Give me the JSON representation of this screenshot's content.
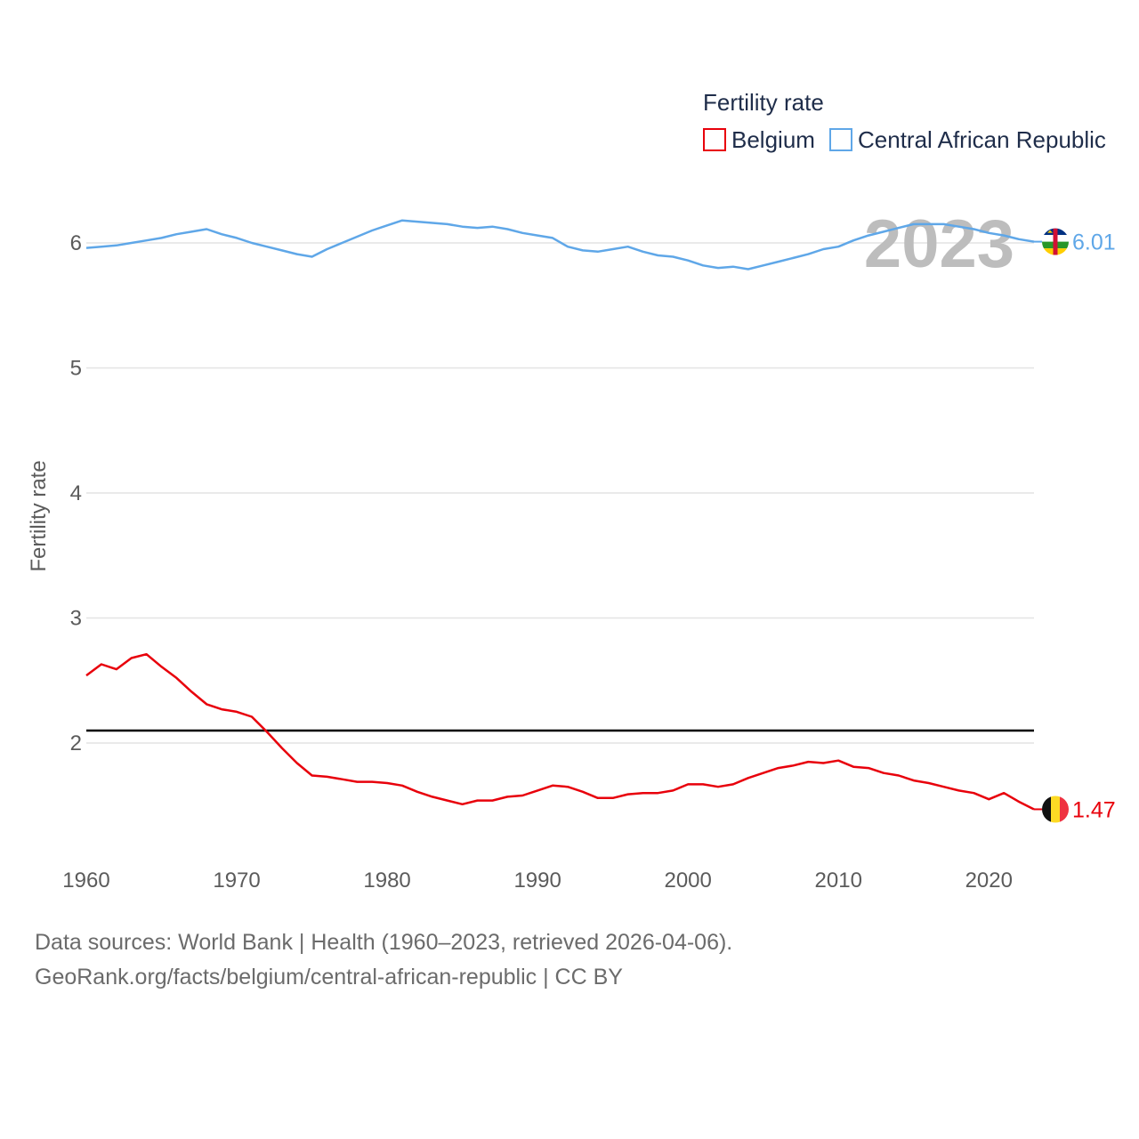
{
  "chart_data": {
    "type": "line",
    "title": "Fertility rate",
    "ylabel": "Fertility rate",
    "xlabel": "",
    "xlim": [
      1960,
      2023
    ],
    "ylim": [
      1.3,
      6.3
    ],
    "yticks": [
      2,
      3,
      4,
      5,
      6
    ],
    "xticks": [
      1960,
      1970,
      1980,
      1990,
      2000,
      2010,
      2020
    ],
    "year_label": "2023",
    "reference_line": 2.1,
    "legend_position": "top-right",
    "series": [
      {
        "name": "Belgium",
        "color": "#e8000b",
        "end_label": "1.47",
        "flag": "belgium-flag",
        "x": [
          1960,
          1961,
          1962,
          1963,
          1964,
          1965,
          1966,
          1967,
          1968,
          1969,
          1970,
          1971,
          1972,
          1973,
          1974,
          1975,
          1976,
          1977,
          1978,
          1979,
          1980,
          1981,
          1982,
          1983,
          1984,
          1985,
          1986,
          1987,
          1988,
          1989,
          1990,
          1991,
          1992,
          1993,
          1994,
          1995,
          1996,
          1997,
          1998,
          1999,
          2000,
          2001,
          2002,
          2003,
          2004,
          2005,
          2006,
          2007,
          2008,
          2009,
          2010,
          2011,
          2012,
          2013,
          2014,
          2015,
          2016,
          2017,
          2018,
          2019,
          2020,
          2021,
          2022,
          2023
        ],
        "values": [
          2.54,
          2.63,
          2.59,
          2.68,
          2.71,
          2.61,
          2.52,
          2.41,
          2.31,
          2.27,
          2.25,
          2.21,
          2.09,
          1.96,
          1.84,
          1.74,
          1.73,
          1.71,
          1.69,
          1.69,
          1.68,
          1.66,
          1.61,
          1.57,
          1.54,
          1.51,
          1.54,
          1.54,
          1.57,
          1.58,
          1.62,
          1.66,
          1.65,
          1.61,
          1.56,
          1.56,
          1.59,
          1.6,
          1.6,
          1.62,
          1.67,
          1.67,
          1.65,
          1.67,
          1.72,
          1.76,
          1.8,
          1.82,
          1.85,
          1.84,
          1.86,
          1.81,
          1.8,
          1.76,
          1.74,
          1.7,
          1.68,
          1.65,
          1.62,
          1.6,
          1.55,
          1.6,
          1.53,
          1.47
        ]
      },
      {
        "name": "Central African Republic",
        "color": "#5fa7e8",
        "end_label": "6.01",
        "flag": "central-african-republic-flag",
        "x": [
          1960,
          1961,
          1962,
          1963,
          1964,
          1965,
          1966,
          1967,
          1968,
          1969,
          1970,
          1971,
          1972,
          1973,
          1974,
          1975,
          1976,
          1977,
          1978,
          1979,
          1980,
          1981,
          1982,
          1983,
          1984,
          1985,
          1986,
          1987,
          1988,
          1989,
          1990,
          1991,
          1992,
          1993,
          1994,
          1995,
          1996,
          1997,
          1998,
          1999,
          2000,
          2001,
          2002,
          2003,
          2004,
          2005,
          2006,
          2007,
          2008,
          2009,
          2010,
          2011,
          2012,
          2013,
          2014,
          2015,
          2016,
          2017,
          2018,
          2019,
          2020,
          2021,
          2022,
          2023
        ],
        "values": [
          5.96,
          5.97,
          5.98,
          6.0,
          6.02,
          6.04,
          6.07,
          6.09,
          6.11,
          6.07,
          6.04,
          6.0,
          5.97,
          5.94,
          5.91,
          5.89,
          5.95,
          6.0,
          6.05,
          6.1,
          6.14,
          6.18,
          6.17,
          6.16,
          6.15,
          6.13,
          6.12,
          6.13,
          6.11,
          6.08,
          6.06,
          6.04,
          5.97,
          5.94,
          5.93,
          5.95,
          5.97,
          5.93,
          5.9,
          5.89,
          5.86,
          5.82,
          5.8,
          5.81,
          5.79,
          5.82,
          5.85,
          5.88,
          5.91,
          5.95,
          5.97,
          6.02,
          6.06,
          6.09,
          6.12,
          6.15,
          6.15,
          6.15,
          6.13,
          6.11,
          6.08,
          6.06,
          6.03,
          6.01
        ]
      }
    ]
  },
  "footer": {
    "sources": "Data sources: World Bank | Health (1960–2023, retrieved 2026-04-06).",
    "credit": "GeoRank.org/facts/belgium/central-african-republic | CC BY"
  }
}
